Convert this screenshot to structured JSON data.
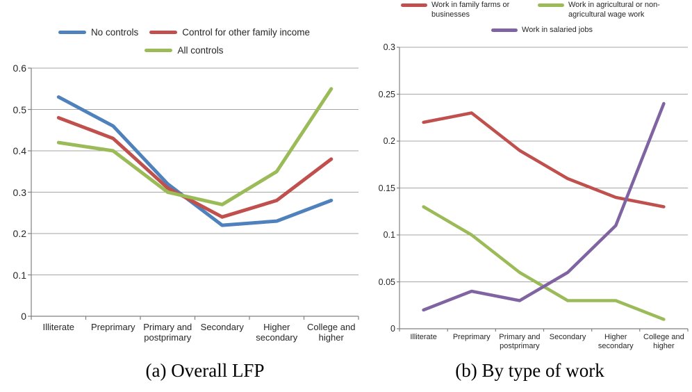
{
  "colors": {
    "grid": "#A6A6A6",
    "axis": "#808080",
    "text": "#262626",
    "series_blue": "#4F81BD",
    "series_red": "#C0504D",
    "series_green": "#9BBB59",
    "series_purple": "#8064A2"
  },
  "chart_data": [
    {
      "id": "a",
      "type": "line",
      "caption": "(a) Overall LFP",
      "legend_position": "top",
      "grid": true,
      "categories": [
        "Illiterate",
        "Preprimary",
        "Primary and postprimary",
        "Secondary",
        "Higher secondary",
        "College and higher"
      ],
      "ylim": [
        0,
        0.6
      ],
      "ytick_step": 0.1,
      "ytick_labels": [
        "0.6",
        "0.5",
        "0.4",
        "0.3",
        "0.2",
        "0.1",
        "0"
      ],
      "series": [
        {
          "name": "No controls",
          "color": "#4F81BD",
          "values": [
            0.53,
            0.46,
            0.32,
            0.22,
            0.23,
            0.28
          ]
        },
        {
          "name": "Control for other family income",
          "color": "#C0504D",
          "values": [
            0.48,
            0.43,
            0.31,
            0.24,
            0.28,
            0.38
          ]
        },
        {
          "name": "All controls",
          "color": "#9BBB59",
          "values": [
            0.42,
            0.4,
            0.3,
            0.27,
            0.35,
            0.55
          ]
        }
      ]
    },
    {
      "id": "b",
      "type": "line",
      "caption": "(b) By type of work",
      "legend_position": "top",
      "grid": true,
      "categories": [
        "Illiterate",
        "Preprimary",
        "Primary and postprimary",
        "Secondary",
        "Higher secondary",
        "College and higher"
      ],
      "ylim": [
        0,
        0.3
      ],
      "ytick_step": 0.05,
      "ytick_labels": [
        "0.3",
        "0.25",
        "0.2",
        "0.15",
        "0.1",
        "0.05",
        "0"
      ],
      "series": [
        {
          "name": "Work in family farms or businesses",
          "color": "#C0504D",
          "values": [
            0.22,
            0.23,
            0.19,
            0.16,
            0.14,
            0.13
          ]
        },
        {
          "name": "Work in agricultural or non-agricultural wage work",
          "color": "#9BBB59",
          "values": [
            0.13,
            0.1,
            0.06,
            0.03,
            0.03,
            0.01
          ]
        },
        {
          "name": "Work in salaried jobs",
          "color": "#8064A2",
          "values": [
            0.02,
            0.04,
            0.03,
            0.06,
            0.11,
            0.24
          ]
        }
      ]
    }
  ]
}
